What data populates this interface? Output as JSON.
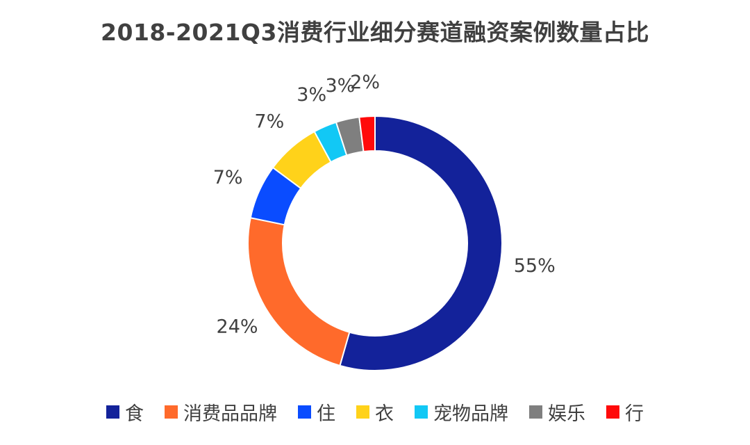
{
  "chart_data": {
    "type": "pie",
    "title": "2018-2021Q3消费行业细分赛道融资案例数量占比",
    "donut": true,
    "legend_position": "bottom",
    "categories": [
      "食",
      "消费品品牌",
      "住",
      "衣",
      "宠物品牌",
      "娱乐",
      "行"
    ],
    "values": [
      55,
      24,
      7,
      7,
      3,
      3,
      2
    ],
    "labels": [
      "55%",
      "24%",
      "7%",
      "7%",
      "3%",
      "3%",
      "2%"
    ],
    "colors": [
      "#13229a",
      "#ff6a2b",
      "#0a4cff",
      "#ffd21a",
      "#12c8f5",
      "#7f7f7f",
      "#ff0a0a"
    ]
  }
}
